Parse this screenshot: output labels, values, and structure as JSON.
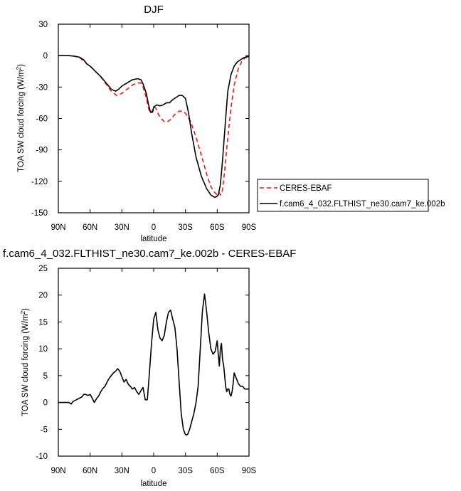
{
  "chart_data": [
    {
      "type": "line",
      "title": "DJF",
      "xlabel": "latitude",
      "ylabel": "TOA SW cloud forcing (W/m",
      "ylabel_sup": "2",
      "ylabel_close": ")",
      "xlim": [
        90,
        -90
      ],
      "ylim": [
        -150,
        30
      ],
      "xticks": [
        90,
        60,
        30,
        0,
        -30,
        -60,
        -90
      ],
      "xtick_labels": [
        "90N",
        "60N",
        "30N",
        "0",
        "30S",
        "60S",
        "90S"
      ],
      "yticks": [
        -150,
        -120,
        -90,
        -60,
        -30,
        0,
        30
      ],
      "ytick_labels": [
        "-150",
        "-120",
        "-90",
        "-60",
        "-30",
        "0",
        "30"
      ],
      "grid": false,
      "legend": "right",
      "series": [
        {
          "name": "CERES-EBAF",
          "color": "#e8191b",
          "dash": true,
          "x": [
            90,
            80,
            75,
            70,
            66,
            63,
            60,
            55,
            50,
            45,
            40,
            35,
            30,
            25,
            20,
            15,
            12,
            10,
            7,
            5,
            3,
            1,
            0,
            -2,
            -5,
            -8,
            -10,
            -13,
            -16,
            -20,
            -24,
            -27,
            -30,
            -35,
            -40,
            -45,
            -50,
            -54,
            -57,
            -59,
            -60,
            -61,
            -62,
            -63,
            -64,
            -65,
            -67,
            -70,
            -73,
            -76,
            -80,
            -83,
            -85,
            -86,
            -88,
            -90
          ],
          "y": [
            0,
            0,
            -0.5,
            -2,
            -5,
            -8,
            -10,
            -15,
            -20,
            -27,
            -34,
            -38,
            -36,
            -32,
            -28,
            -26,
            -26,
            -30,
            -40,
            -50,
            -55,
            -52,
            -49,
            -50,
            -57,
            -61,
            -63,
            -63,
            -61,
            -56,
            -53,
            -53,
            -55,
            -63,
            -78,
            -95,
            -113,
            -125,
            -130,
            -132,
            -133,
            -131,
            -131,
            -133,
            -132,
            -128,
            -110,
            -78,
            -50,
            -28,
            -12,
            -6,
            -4,
            -2,
            -2,
            -2
          ]
        },
        {
          "name": "f.cam6_4_032.FLTHIST_ne30.cam7_ke.002b",
          "color": "#000000",
          "dash": false,
          "x": [
            90,
            80,
            75,
            70,
            66,
            63,
            60,
            55,
            50,
            45,
            40,
            36,
            33,
            30,
            25,
            20,
            15,
            12,
            10,
            7,
            5,
            3,
            1,
            0,
            -3,
            -6,
            -9,
            -12,
            -15,
            -18,
            -21,
            -24,
            -27,
            -30,
            -33,
            -36,
            -40,
            -45,
            -50,
            -54,
            -57,
            -59,
            -61,
            -63,
            -65,
            -68,
            -70,
            -73,
            -76,
            -79,
            -82,
            -85,
            -88,
            -90
          ],
          "y": [
            0,
            0,
            -0.5,
            -1.5,
            -4,
            -8,
            -10,
            -15,
            -20,
            -26,
            -32,
            -34,
            -32,
            -29,
            -26,
            -23,
            -22,
            -23,
            -27,
            -36,
            -46,
            -54,
            -54,
            -49,
            -47,
            -48,
            -47,
            -45,
            -45,
            -42,
            -40,
            -38,
            -38,
            -41,
            -55,
            -75,
            -97,
            -115,
            -127,
            -133,
            -135,
            -135,
            -133,
            -123,
            -100,
            -60,
            -34,
            -18,
            -10,
            -6,
            -4,
            -2,
            -1,
            -1
          ]
        }
      ]
    },
    {
      "type": "line",
      "title": "f.cam6_4_032.FLTHIST_ne30.cam7_ke.002b - CERES-EBAF",
      "xlabel": "latitude",
      "ylabel": "TOA SW cloud forcing (W/m",
      "ylabel_sup": "2",
      "ylabel_close": ")",
      "xlim": [
        90,
        -90
      ],
      "ylim": [
        -10,
        25
      ],
      "xticks": [
        90,
        60,
        30,
        0,
        -30,
        -60,
        -90
      ],
      "xtick_labels": [
        "90N",
        "60N",
        "30N",
        "0",
        "30S",
        "60S",
        "90S"
      ],
      "yticks": [
        -10,
        -5,
        0,
        5,
        10,
        15,
        20,
        25
      ],
      "ytick_labels": [
        "-10",
        "-5",
        "0",
        "5",
        "10",
        "15",
        "20",
        "25"
      ],
      "grid": false,
      "series": [
        {
          "color": "#000000",
          "dash": false,
          "x": [
            90,
            85,
            80,
            78,
            76,
            72,
            70,
            68,
            66,
            64,
            62,
            60,
            58,
            56,
            54,
            52,
            50,
            48,
            46,
            44,
            42,
            40,
            38,
            36,
            34,
            32,
            30,
            28,
            26,
            24,
            22,
            20,
            18,
            16,
            14,
            12,
            10,
            8,
            6,
            4,
            2,
            0,
            -2,
            -4,
            -6,
            -8,
            -10,
            -12,
            -14,
            -16,
            -18,
            -20,
            -22,
            -24,
            -26,
            -28,
            -30,
            -32,
            -34,
            -36,
            -38,
            -40,
            -42,
            -44,
            -46,
            -48,
            -50,
            -52,
            -54,
            -56,
            -58,
            -60,
            -61,
            -62,
            -63,
            -64,
            -65,
            -66,
            -67,
            -68,
            -69,
            -70,
            -71,
            -72,
            -73,
            -74,
            -75,
            -76,
            -78,
            -80,
            -82,
            -84,
            -86,
            -88,
            -90
          ],
          "y": [
            0,
            0,
            0,
            -0.3,
            0.2,
            0.6,
            0.8,
            1.0,
            1.5,
            1.5,
            1.3,
            1.5,
            0.8,
            0.0,
            0.7,
            1.2,
            2.0,
            2.6,
            3.0,
            3.8,
            4.5,
            5.0,
            5.5,
            5.8,
            6.3,
            5.8,
            4.8,
            3.8,
            4.3,
            3.4,
            3.0,
            2.5,
            2.8,
            2.0,
            1.5,
            2.2,
            2.8,
            0.5,
            0.5,
            5.5,
            11.0,
            15.5,
            16.8,
            13.5,
            12.0,
            11.5,
            12.5,
            15.0,
            16.8,
            17.2,
            15.5,
            14.0,
            10.0,
            4.0,
            -2.0,
            -5.0,
            -6.0,
            -6.0,
            -5.0,
            -3.5,
            -2.0,
            0.0,
            3.0,
            10.0,
            17.0,
            20.2,
            17.0,
            13.0,
            10.0,
            9.0,
            9.5,
            11.5,
            9.0,
            6.8,
            10.0,
            11.0,
            8.0,
            7.0,
            5.0,
            3.0,
            2.0,
            2.5,
            2.5,
            1.5,
            1.2,
            2.0,
            3.5,
            5.5,
            4.5,
            3.5,
            3.0,
            3.0,
            2.5,
            2.5,
            2.5
          ]
        }
      ]
    }
  ]
}
